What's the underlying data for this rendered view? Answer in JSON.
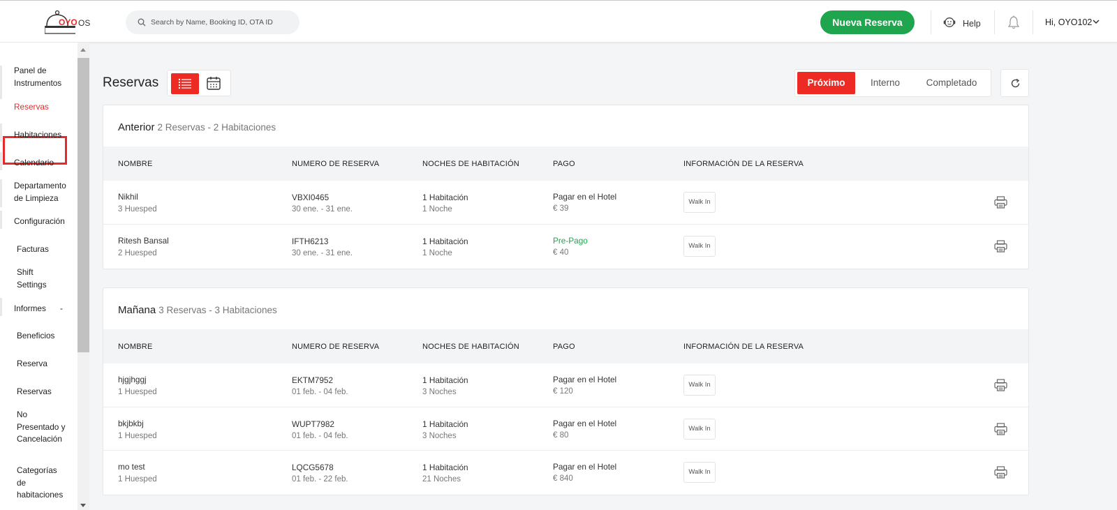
{
  "brand": {
    "logo_text": "OYO",
    "os_text": "OS"
  },
  "search": {
    "placeholder": "Search by Name, Booking ID, OTA ID"
  },
  "header": {
    "new_booking": "Nueva Reserva",
    "help": "Help",
    "user": "Hi, OYO102"
  },
  "sidebar": {
    "items": [
      {
        "label": "Panel de Instrumentos"
      },
      {
        "label": "Reservas"
      },
      {
        "label": "Habitaciones"
      },
      {
        "label": "Calendario"
      },
      {
        "label": "Departamento de Limpieza"
      },
      {
        "label": "Configuración"
      },
      {
        "label": "Facturas"
      },
      {
        "label": "Shift Settings"
      },
      {
        "label": "Informes"
      },
      {
        "label": "-"
      },
      {
        "label": "Beneficios"
      },
      {
        "label": "Reserva"
      },
      {
        "label": "Reservas"
      },
      {
        "label": "No Presentado y Cancelación"
      },
      {
        "label": "Categorías de habitaciones"
      }
    ]
  },
  "page": {
    "title": "Reservas",
    "tabs": [
      {
        "label": "Próximo"
      },
      {
        "label": "Interno"
      },
      {
        "label": "Completado"
      }
    ]
  },
  "table_headers": {
    "name": "NOMBRE",
    "booking": "NUMERO DE RESERVA",
    "nights": "NOCHES DE HABITACIÓN",
    "payment": "PAGO",
    "info": "INFORMACIÓN DE LA RESERVA"
  },
  "sections": [
    {
      "title": "Anterior",
      "subtitle": "2 Reservas - 2 Habitaciones",
      "rows": [
        {
          "name": "Nikhil",
          "guests": "3 Huesped",
          "booking_id": "VBXI0465",
          "dates": "30 ene. - 31 ene.",
          "rooms": "1 Habitación",
          "nights": "1 Noche",
          "pay_type": "Pagar en el Hotel",
          "amount": "€ 39",
          "info": "Walk In"
        },
        {
          "name": "Ritesh Bansal",
          "guests": "2 Huesped",
          "booking_id": "IFTH6213",
          "dates": "30 ene. - 31 ene.",
          "rooms": "1 Habitación",
          "nights": "1 Noche",
          "pay_type": "Pre-Pago",
          "amount": "€ 40",
          "info": "Walk In"
        }
      ]
    },
    {
      "title": "Mañana",
      "subtitle": "3 Reservas - 3 Habitaciones",
      "rows": [
        {
          "name": "hjgjhggj",
          "guests": "1 Huesped",
          "booking_id": "EKTM7952",
          "dates": "01 feb. - 04 feb.",
          "rooms": "1 Habitación",
          "nights": "3 Noches",
          "pay_type": "Pagar en el Hotel",
          "amount": "€ 120",
          "info": "Walk In"
        },
        {
          "name": "bkjbkbj",
          "guests": "1 Huesped",
          "booking_id": "WUPT7982",
          "dates": "01 feb. - 04 feb.",
          "rooms": "1 Habitación",
          "nights": "3 Noches",
          "pay_type": "Pagar en el Hotel",
          "amount": "€ 80",
          "info": "Walk In"
        },
        {
          "name": "mo test",
          "guests": "1 Huesped",
          "booking_id": "LQCG5678",
          "dates": "01 feb. - 22 feb.",
          "rooms": "1 Habitación",
          "nights": "21 Noches",
          "pay_type": "Pagar en el Hotel",
          "amount": "€ 840",
          "info": "Walk In"
        }
      ]
    }
  ],
  "colors": {
    "accent": "#ee2a24",
    "primary_green": "#1ea54e",
    "prepaid": "#1ea54e"
  }
}
